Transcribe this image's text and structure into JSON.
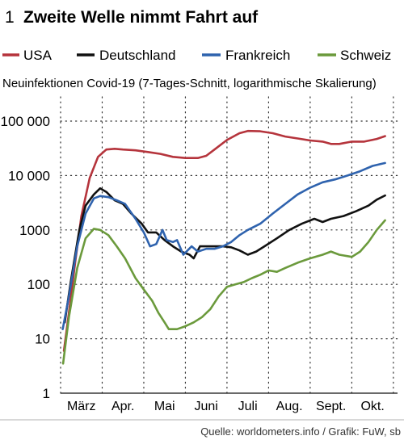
{
  "header": {
    "number": "1",
    "title": "Zweite Welle nimmt Fahrt auf"
  },
  "subtitle": "Neuinfektionen Covid-19 (7-Tages-Schnitt, logarithmische Skalierung)",
  "source": "Quelle: worldometers.info / Grafik: FuW, sb",
  "colors": {
    "USA": "#b5343c",
    "Deutschland": "#111111",
    "Frankreich": "#2f63ae",
    "Schweiz": "#6b9a3c"
  },
  "chart_data": {
    "type": "line",
    "yscale": "log",
    "ylim": [
      1,
      100000
    ],
    "yticks": [
      1,
      10,
      100,
      1000,
      10000,
      100000
    ],
    "ytick_labels": [
      "1",
      "10",
      "100",
      "1000",
      "10 000",
      "100 000"
    ],
    "xlim": [
      0,
      8.1
    ],
    "xticks": [
      {
        "label": "März",
        "pos": 0.5
      },
      {
        "label": "Apr.",
        "pos": 1.5
      },
      {
        "label": "Mai",
        "pos": 2.5
      },
      {
        "label": "Juni",
        "pos": 3.5
      },
      {
        "label": "Juli",
        "pos": 4.5
      },
      {
        "label": "Aug.",
        "pos": 5.5
      },
      {
        "label": "Sept.",
        "pos": 6.5
      },
      {
        "label": "Okt.",
        "pos": 7.5
      }
    ],
    "grid_x": [
      0,
      1,
      2,
      3,
      4,
      5,
      6,
      7,
      8
    ],
    "grid_y": true,
    "legend_position": "top",
    "series": [
      {
        "name": "USA",
        "points": [
          [
            0.08,
            6
          ],
          [
            0.2,
            30
          ],
          [
            0.35,
            250
          ],
          [
            0.5,
            1800
          ],
          [
            0.7,
            9000
          ],
          [
            0.9,
            22000
          ],
          [
            1.1,
            30000
          ],
          [
            1.3,
            31000
          ],
          [
            1.5,
            30000
          ],
          [
            1.8,
            29000
          ],
          [
            2.1,
            27000
          ],
          [
            2.4,
            25000
          ],
          [
            2.7,
            22000
          ],
          [
            3.0,
            21000
          ],
          [
            3.3,
            21000
          ],
          [
            3.5,
            23000
          ],
          [
            3.7,
            30000
          ],
          [
            4.0,
            45000
          ],
          [
            4.3,
            60000
          ],
          [
            4.5,
            66000
          ],
          [
            4.8,
            65000
          ],
          [
            5.1,
            60000
          ],
          [
            5.4,
            52000
          ],
          [
            5.7,
            48000
          ],
          [
            6.0,
            44000
          ],
          [
            6.3,
            42000
          ],
          [
            6.5,
            38000
          ],
          [
            6.7,
            38000
          ],
          [
            7.0,
            42000
          ],
          [
            7.3,
            42000
          ],
          [
            7.6,
            47000
          ],
          [
            7.8,
            53000
          ]
        ]
      },
      {
        "name": "Deutschland",
        "points": [
          [
            0.1,
            20
          ],
          [
            0.25,
            120
          ],
          [
            0.45,
            1000
          ],
          [
            0.6,
            2800
          ],
          [
            0.8,
            4500
          ],
          [
            0.95,
            5800
          ],
          [
            1.1,
            5000
          ],
          [
            1.3,
            3500
          ],
          [
            1.5,
            3000
          ],
          [
            1.7,
            2000
          ],
          [
            1.95,
            1300
          ],
          [
            2.1,
            900
          ],
          [
            2.3,
            900
          ],
          [
            2.5,
            650
          ],
          [
            2.7,
            500
          ],
          [
            2.9,
            400
          ],
          [
            3.1,
            350
          ],
          [
            3.2,
            300
          ],
          [
            3.35,
            500
          ],
          [
            3.5,
            500
          ],
          [
            3.7,
            500
          ],
          [
            3.9,
            500
          ],
          [
            4.1,
            480
          ],
          [
            4.3,
            420
          ],
          [
            4.5,
            350
          ],
          [
            4.7,
            400
          ],
          [
            4.9,
            500
          ],
          [
            5.2,
            700
          ],
          [
            5.5,
            1000
          ],
          [
            5.8,
            1300
          ],
          [
            6.1,
            1600
          ],
          [
            6.3,
            1400
          ],
          [
            6.5,
            1600
          ],
          [
            6.8,
            1800
          ],
          [
            7.1,
            2200
          ],
          [
            7.4,
            2800
          ],
          [
            7.6,
            3600
          ],
          [
            7.8,
            4300
          ]
        ]
      },
      {
        "name": "Frankreich",
        "points": [
          [
            0.05,
            15
          ],
          [
            0.2,
            60
          ],
          [
            0.4,
            500
          ],
          [
            0.6,
            2000
          ],
          [
            0.8,
            3800
          ],
          [
            0.95,
            4200
          ],
          [
            1.15,
            4000
          ],
          [
            1.35,
            3500
          ],
          [
            1.55,
            3000
          ],
          [
            1.8,
            1600
          ],
          [
            2.0,
            900
          ],
          [
            2.15,
            500
          ],
          [
            2.3,
            550
          ],
          [
            2.45,
            1000
          ],
          [
            2.55,
            650
          ],
          [
            2.7,
            600
          ],
          [
            2.8,
            650
          ],
          [
            2.95,
            350
          ],
          [
            3.15,
            500
          ],
          [
            3.3,
            400
          ],
          [
            3.5,
            450
          ],
          [
            3.7,
            450
          ],
          [
            3.9,
            500
          ],
          [
            4.1,
            600
          ],
          [
            4.3,
            800
          ],
          [
            4.5,
            1000
          ],
          [
            4.8,
            1300
          ],
          [
            5.1,
            2000
          ],
          [
            5.4,
            3000
          ],
          [
            5.7,
            4500
          ],
          [
            6.0,
            6000
          ],
          [
            6.3,
            7500
          ],
          [
            6.6,
            8500
          ],
          [
            6.9,
            10000
          ],
          [
            7.2,
            12000
          ],
          [
            7.5,
            15000
          ],
          [
            7.8,
            17000
          ]
        ]
      },
      {
        "name": "Schweiz",
        "points": [
          [
            0.06,
            3.5
          ],
          [
            0.2,
            25
          ],
          [
            0.4,
            200
          ],
          [
            0.6,
            700
          ],
          [
            0.8,
            1050
          ],
          [
            0.95,
            1000
          ],
          [
            1.15,
            800
          ],
          [
            1.35,
            500
          ],
          [
            1.55,
            300
          ],
          [
            1.8,
            130
          ],
          [
            2.0,
            80
          ],
          [
            2.2,
            50
          ],
          [
            2.35,
            30
          ],
          [
            2.5,
            20
          ],
          [
            2.6,
            15
          ],
          [
            2.8,
            15
          ],
          [
            3.0,
            17
          ],
          [
            3.2,
            20
          ],
          [
            3.4,
            25
          ],
          [
            3.6,
            35
          ],
          [
            3.8,
            60
          ],
          [
            4.0,
            90
          ],
          [
            4.2,
            100
          ],
          [
            4.4,
            110
          ],
          [
            4.6,
            130
          ],
          [
            4.8,
            150
          ],
          [
            5.0,
            180
          ],
          [
            5.2,
            170
          ],
          [
            5.4,
            200
          ],
          [
            5.7,
            250
          ],
          [
            6.0,
            300
          ],
          [
            6.3,
            350
          ],
          [
            6.5,
            400
          ],
          [
            6.7,
            350
          ],
          [
            7.0,
            320
          ],
          [
            7.2,
            400
          ],
          [
            7.4,
            600
          ],
          [
            7.6,
            1000
          ],
          [
            7.8,
            1500
          ]
        ]
      }
    ]
  }
}
